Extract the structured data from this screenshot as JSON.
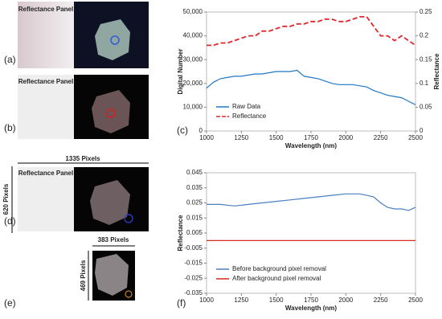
{
  "figure": {
    "panel_labels": [
      "(a)",
      "(b)",
      "(c)",
      "(d)",
      "(e)",
      "(f)"
    ],
    "reflectance_panel_labels": [
      "Reflectance Panel",
      "Reflectance Panel",
      "Reflectance Panel"
    ],
    "dimension_labels": [
      "1335 Pixels",
      "620 Pixels",
      "383 Pixels",
      "469 Pixels"
    ]
  },
  "chart_data": [
    {
      "type": "line",
      "xlabel": "Wavelength (nm)",
      "ylabel": "Digital Number",
      "y2label": "Reflectance",
      "x": [
        1000,
        1050,
        1100,
        1150,
        1200,
        1250,
        1300,
        1350,
        1400,
        1450,
        1500,
        1550,
        1600,
        1650,
        1700,
        1750,
        1800,
        1850,
        1900,
        1950,
        2000,
        2050,
        2100,
        2150,
        2200,
        2250,
        2300,
        2350,
        2400,
        2450,
        2500
      ],
      "series": [
        {
          "name": "Raw Data",
          "color": "#1f77c4",
          "axis": "y",
          "values": [
            18000,
            20500,
            22000,
            22500,
            23000,
            23000,
            23500,
            24000,
            24000,
            24500,
            25000,
            25000,
            25000,
            25500,
            23000,
            22500,
            22000,
            21000,
            20000,
            19500,
            19500,
            19500,
            19000,
            18500,
            17000,
            16000,
            15000,
            14500,
            14000,
            12500,
            11000
          ]
        },
        {
          "name": "Reflectance",
          "color": "#e0262b",
          "axis": "y2",
          "dashed": true,
          "values": [
            0.18,
            0.18,
            0.185,
            0.185,
            0.19,
            0.195,
            0.2,
            0.2,
            0.21,
            0.21,
            0.215,
            0.22,
            0.22,
            0.225,
            0.225,
            0.23,
            0.23,
            0.235,
            0.235,
            0.23,
            0.23,
            0.235,
            0.24,
            0.24,
            0.22,
            0.2,
            0.2,
            0.19,
            0.2,
            0.19,
            0.18
          ]
        }
      ],
      "xlim": [
        1000,
        2500
      ],
      "xticks": [
        1000,
        1250,
        1500,
        1750,
        2000,
        2250,
        2500
      ],
      "ylim": [
        0,
        50000
      ],
      "yticks": [
        0,
        {
          "value": 10000,
          "label": "10,000"
        },
        {
          "value": 20000,
          "label": "20,000"
        },
        {
          "value": 30000,
          "label": "30,000"
        },
        {
          "value": 40000,
          "label": "40,000"
        },
        {
          "value": 50000,
          "label": "50,000"
        }
      ],
      "y2lim": [
        0,
        0.25
      ],
      "y2ticks": [
        0,
        0.05,
        0.1,
        0.15,
        0.2,
        0.25
      ],
      "grid": false,
      "legend": "lower left"
    },
    {
      "type": "line",
      "xlabel": "Wavelength (nm)",
      "ylabel": "Reflectance",
      "x": [
        1000,
        1100,
        1200,
        1300,
        1400,
        1500,
        1600,
        1700,
        1800,
        1900,
        2000,
        2100,
        2150,
        2200,
        2250,
        2300,
        2350,
        2400,
        2450,
        2500
      ],
      "series": [
        {
          "name": "Before background pixel removal",
          "color": "#4a7fc1",
          "values": [
            0.024,
            0.024,
            0.023,
            0.024,
            0.025,
            0.026,
            0.027,
            0.028,
            0.029,
            0.03,
            0.031,
            0.031,
            0.03,
            0.029,
            0.025,
            0.022,
            0.021,
            0.021,
            0.02,
            0.022
          ]
        },
        {
          "name": "After  background pixel removal",
          "color": "#d62a1e",
          "values": [
            0,
            0,
            0,
            0,
            0,
            0,
            0,
            0,
            0,
            0,
            0,
            0,
            0,
            0,
            0,
            0,
            0,
            0,
            0,
            0
          ]
        }
      ],
      "xlim": [
        1000,
        2500
      ],
      "xticks": [
        1000,
        1250,
        1500,
        1750,
        2000,
        2250,
        2500
      ],
      "ylim": [
        -0.035,
        0.045
      ],
      "yticks": [
        -0.035,
        -0.025,
        -0.015,
        -0.005,
        0.005,
        0.015,
        0.025,
        0.035,
        0.045
      ],
      "grid": false,
      "legend": "lower left"
    }
  ]
}
